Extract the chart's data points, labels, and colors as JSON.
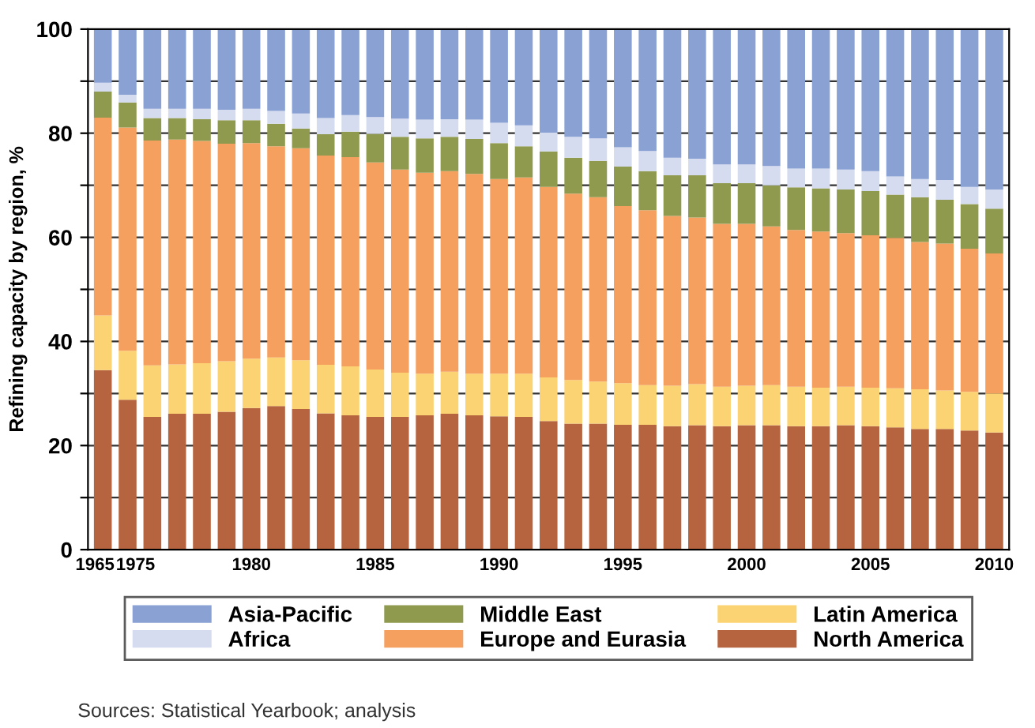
{
  "chart_data": {
    "type": "bar",
    "stacked": true,
    "ylabel": "Refining capacity by region, %",
    "categories": [
      "1965",
      "1975",
      null,
      null,
      null,
      null,
      "1980",
      null,
      null,
      null,
      null,
      "1985",
      null,
      null,
      null,
      null,
      "1990",
      null,
      null,
      null,
      null,
      "1995",
      null,
      null,
      null,
      null,
      "2000",
      null,
      null,
      null,
      null,
      "2005",
      null,
      null,
      null,
      null,
      "2010"
    ],
    "series": [
      {
        "name": "North America",
        "color": "#b5643f",
        "values": [
          34.5,
          28.8,
          25.5,
          26.1,
          26.1,
          26.5,
          27.2,
          27.6,
          27.0,
          26.2,
          25.8,
          25.5,
          25.5,
          25.8,
          26.1,
          25.8,
          25.6,
          25.5,
          24.7,
          24.2,
          24.2,
          24.0,
          24.0,
          23.7,
          23.9,
          23.7,
          23.9,
          23.9,
          23.7,
          23.7,
          23.9,
          23.7,
          23.5,
          23.2,
          23.2,
          22.9,
          22.5
        ]
      },
      {
        "name": "Latin America",
        "color": "#fbd373",
        "values": [
          10.5,
          9.4,
          9.9,
          9.5,
          9.7,
          9.7,
          9.5,
          9.3,
          9.4,
          9.3,
          9.4,
          9.1,
          8.5,
          8.0,
          8.1,
          8.0,
          8.2,
          8.3,
          8.4,
          8.4,
          8.1,
          8.0,
          7.6,
          7.8,
          7.9,
          7.6,
          7.6,
          7.7,
          7.6,
          7.4,
          7.4,
          7.4,
          7.5,
          7.6,
          7.4,
          7.4,
          7.5
        ]
      },
      {
        "name": "Europe and Eurasia",
        "color": "#f5a05f",
        "values": [
          38.0,
          42.9,
          43.2,
          43.2,
          42.7,
          41.8,
          41.4,
          40.6,
          40.7,
          40.2,
          40.2,
          39.8,
          39.0,
          38.6,
          38.5,
          38.4,
          37.4,
          37.7,
          36.6,
          35.8,
          35.4,
          34.0,
          33.6,
          32.6,
          32.0,
          31.3,
          31.1,
          30.5,
          30.1,
          30.0,
          29.5,
          29.3,
          28.9,
          28.3,
          28.2,
          27.5,
          26.9
        ]
      },
      {
        "name": "Middle East",
        "color": "#8f9a4f",
        "values": [
          5.0,
          4.8,
          4.3,
          4.1,
          4.2,
          4.5,
          4.4,
          4.3,
          3.8,
          4.1,
          4.9,
          5.5,
          6.3,
          6.6,
          6.6,
          6.7,
          6.9,
          6.0,
          6.8,
          6.9,
          7.0,
          7.6,
          7.5,
          7.8,
          8.1,
          7.8,
          7.8,
          7.9,
          8.2,
          8.3,
          8.4,
          8.5,
          8.3,
          8.6,
          8.4,
          8.6,
          8.6
        ]
      },
      {
        "name": "Africa",
        "color": "#d5dcef",
        "values": [
          1.7,
          1.5,
          1.8,
          1.8,
          2.0,
          2.0,
          2.2,
          2.5,
          2.9,
          3.1,
          3.2,
          3.2,
          3.5,
          3.6,
          3.4,
          3.7,
          3.9,
          4.0,
          3.6,
          4.0,
          4.3,
          3.7,
          3.9,
          3.4,
          3.2,
          3.6,
          3.6,
          3.7,
          3.6,
          3.8,
          3.8,
          3.8,
          3.5,
          3.5,
          3.8,
          3.3,
          3.7
        ]
      },
      {
        "name": "Asia-Pacific",
        "color": "#8aa1d4",
        "values": [
          10.3,
          12.6,
          15.3,
          15.3,
          15.3,
          15.5,
          15.3,
          15.7,
          16.2,
          17.1,
          16.5,
          16.9,
          17.2,
          17.4,
          17.3,
          17.4,
          18.0,
          18.5,
          19.9,
          20.7,
          21.0,
          22.7,
          23.4,
          24.7,
          24.9,
          26.0,
          26.0,
          26.3,
          26.8,
          26.8,
          27.0,
          27.3,
          28.3,
          28.8,
          29.0,
          30.3,
          30.8
        ]
      }
    ],
    "ylim": [
      0,
      100
    ],
    "yticks": [
      0,
      {
        "value": 10,
        "label": null
      },
      20,
      {
        "value": 30,
        "label": null
      },
      40,
      {
        "value": 50,
        "label": null
      },
      60,
      {
        "value": 70,
        "label": null
      },
      80,
      {
        "value": 90,
        "label": null
      },
      100
    ],
    "grid": "y",
    "legend": "bottom",
    "annotations": [
      "Sources: Statistical Yearbook; analysis"
    ]
  }
}
